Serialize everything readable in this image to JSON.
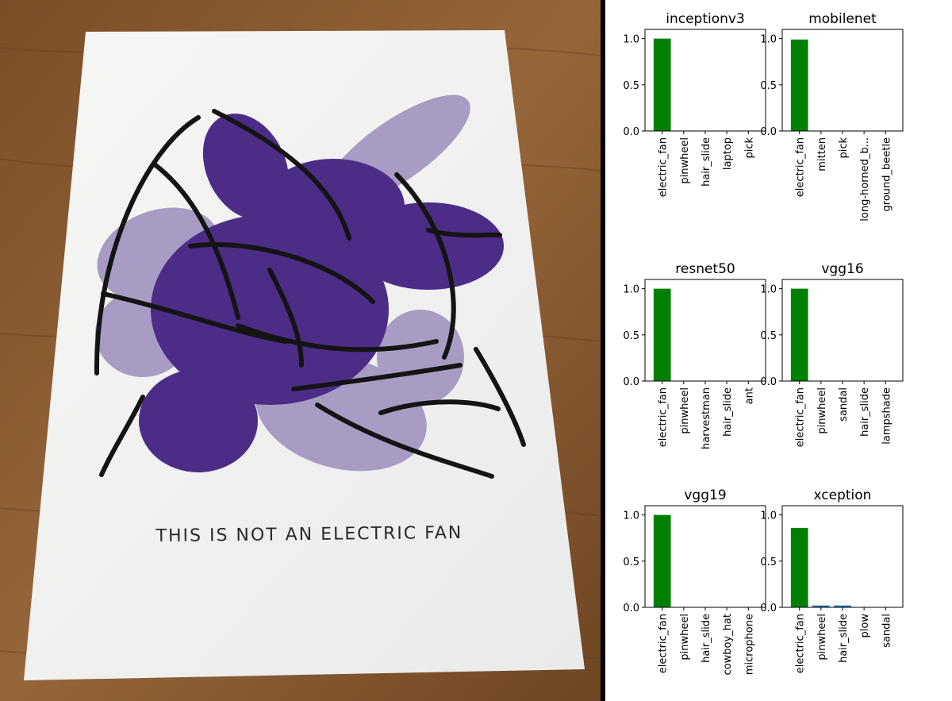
{
  "photo": {
    "caption": "THIS IS NOT AN ELECTRIC FAN"
  },
  "colors": {
    "top_bar": "#008000",
    "other_bar": "#1f77b4",
    "paper_ink": "#4b2d87",
    "paper_ink_light": "#a89cc4",
    "table_wood": "#8a5a30"
  },
  "chart_data": [
    {
      "type": "bar",
      "title": "inceptionv3",
      "categories": [
        "electric_fan",
        "pinwheel",
        "hair_slide",
        "laptop",
        "pick"
      ],
      "values": [
        1.0,
        0.0,
        0.0,
        0.0,
        0.0
      ],
      "ylim": [
        0,
        1.1
      ],
      "yticks": [
        "0.0",
        "0.5",
        "1.0"
      ],
      "grid": false
    },
    {
      "type": "bar",
      "title": "mobilenet",
      "categories": [
        "electric_fan",
        "mitten",
        "pick",
        "long-horned_b...",
        "ground_beetle"
      ],
      "values": [
        0.99,
        0.0,
        0.0,
        0.0,
        0.0
      ],
      "ylim": [
        0,
        1.1
      ],
      "yticks": [
        "0.0",
        "0.5",
        "1.0"
      ],
      "grid": false
    },
    {
      "type": "bar",
      "title": "resnet50",
      "categories": [
        "electric_fan",
        "pinwheel",
        "harvestman",
        "hair_slide",
        "ant"
      ],
      "values": [
        1.0,
        0.0,
        0.0,
        0.0,
        0.0
      ],
      "ylim": [
        0,
        1.1
      ],
      "yticks": [
        "0.0",
        "0.5",
        "1.0"
      ],
      "grid": false
    },
    {
      "type": "bar",
      "title": "vgg16",
      "categories": [
        "electric_fan",
        "pinwheel",
        "sandal",
        "hair_slide",
        "lampshade"
      ],
      "values": [
        1.0,
        0.0,
        0.0,
        0.0,
        0.0
      ],
      "ylim": [
        0,
        1.1
      ],
      "yticks": [
        "0.0",
        "0.5",
        "1.0"
      ],
      "grid": false
    },
    {
      "type": "bar",
      "title": "vgg19",
      "categories": [
        "electric_fan",
        "pinwheel",
        "hair_slide",
        "cowboy_hat",
        "microphone"
      ],
      "values": [
        1.0,
        0.0,
        0.0,
        0.0,
        0.0
      ],
      "ylim": [
        0,
        1.1
      ],
      "yticks": [
        "0.0",
        "0.5",
        "1.0"
      ],
      "grid": false
    },
    {
      "type": "bar",
      "title": "xception",
      "categories": [
        "electric_fan",
        "pinwheel",
        "hair_slide",
        "plow",
        "sandal"
      ],
      "values": [
        0.86,
        0.02,
        0.02,
        0.0,
        0.0
      ],
      "ylim": [
        0,
        1.1
      ],
      "yticks": [
        "0.0",
        "0.5",
        "1.0"
      ],
      "grid": false
    }
  ]
}
